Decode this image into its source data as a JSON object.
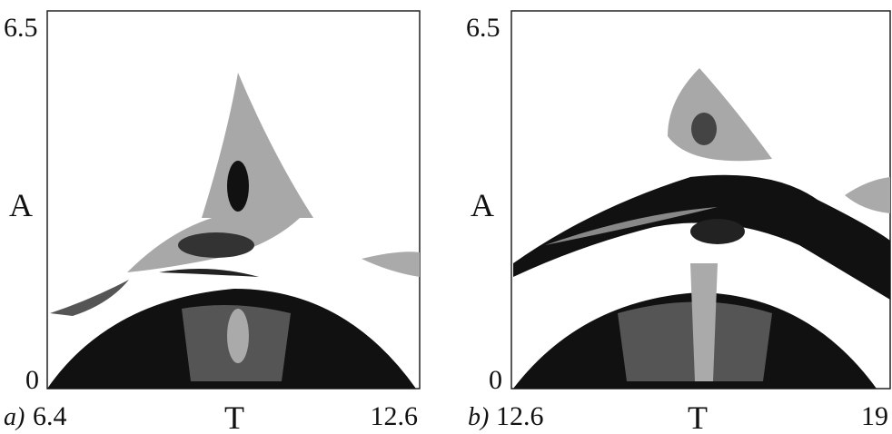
{
  "panels": [
    {
      "label": "a)",
      "x_min": "6.4",
      "x_max": "12.6",
      "y_min": "0",
      "y_max": "6.5",
      "x_label": "T",
      "y_label": "A"
    },
    {
      "label": "b)",
      "x_min": "12.6",
      "x_max": "19",
      "y_min": "0",
      "y_max": "6.5",
      "x_label": "T",
      "y_label": "A"
    }
  ]
}
